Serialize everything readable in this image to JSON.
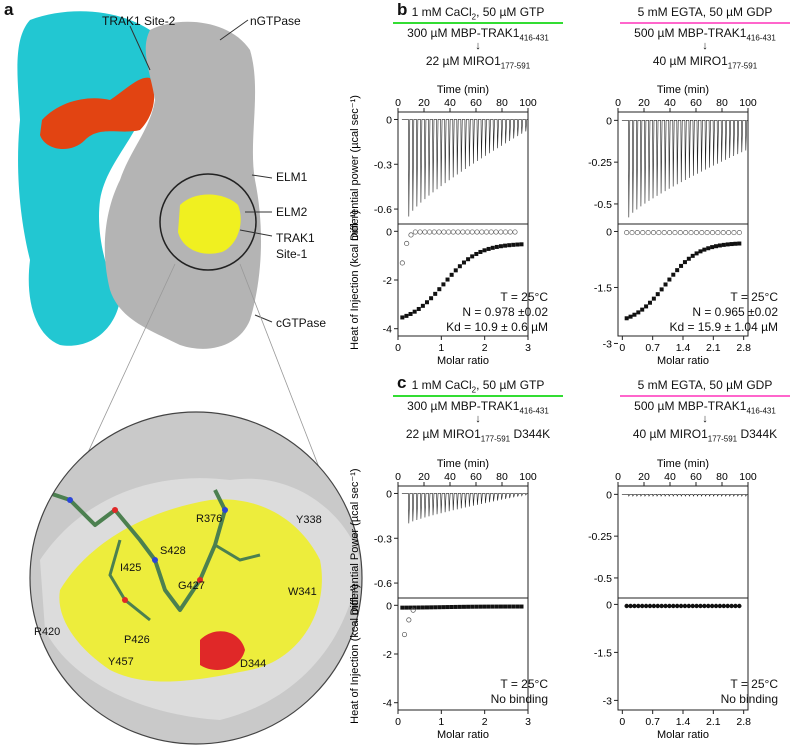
{
  "panel_a": {
    "label": "a",
    "labels": {
      "site2": "TRAK1 Site-2",
      "ngtpase": "nGTPase",
      "elm1": "ELM1",
      "elm2": "ELM2",
      "site1_line1": "TRAK1",
      "site1_line2": "Site-1",
      "cgtpase": "cGTPase"
    },
    "residues": [
      "R376",
      "Y338",
      "S428",
      "I425",
      "G427",
      "W341",
      "R420",
      "P426",
      "Y457",
      "D344"
    ],
    "colors": {
      "cyan": "#22c7d2",
      "orange": "#e24412",
      "grey": "#b4b4b4",
      "yellow": "#f0f020",
      "red": "#e02828"
    }
  },
  "panel_b": {
    "label": "b",
    "left": {
      "header": "1 mM CaCl",
      "header_sub": "2",
      "header_rest": ", 50 µM GTP",
      "rule_color": "#33dd33",
      "syringe": "300 µM MBP-TRAK1",
      "syringe_sub": "416-431",
      "arrow": "↓",
      "cell": "22 µM MIRO1",
      "cell_sub": "177-591",
      "cell_suffix": "",
      "annotation": [
        "T = 25°C",
        "N = 0.978 ±0.02",
        "Kd = 10.9 ± 0.6 µM"
      ]
    },
    "right": {
      "header": "5 mM EGTA, 50 µM GDP",
      "header_sub": "",
      "header_rest": "",
      "rule_color": "#ff66cc",
      "syringe": "500 µM MBP-TRAK1",
      "syringe_sub": "416-431",
      "arrow": "↓",
      "cell": "40 µM MIRO1",
      "cell_sub": "177-591",
      "cell_suffix": "",
      "annotation": [
        "T = 25°C",
        "N = 0.965 ±0.02",
        "Kd = 15.9 ± 1.04 µM"
      ]
    }
  },
  "panel_c": {
    "label": "c",
    "left": {
      "header": "1 mM CaCl",
      "header_sub": "2",
      "header_rest": ", 50 µM GTP",
      "rule_color": "#33dd33",
      "syringe": "300 µM MBP-TRAK1",
      "syringe_sub": "416-431",
      "arrow": "↓",
      "cell": "22 µM MIRO1",
      "cell_sub": "177-591",
      "cell_suffix": " D344K",
      "annotation": [
        "T = 25°C",
        "No binding"
      ]
    },
    "right": {
      "header": "5 mM EGTA, 50 µM GDP",
      "header_sub": "",
      "header_rest": "",
      "rule_color": "#ff66cc",
      "syringe": "500 µM MBP-TRAK1",
      "syringe_sub": "416-431",
      "arrow": "↓",
      "cell": "40 µM MIRO1",
      "cell_sub": "177-591",
      "cell_suffix": " D344K",
      "annotation": [
        "T = 25°C",
        "No binding"
      ]
    }
  },
  "chart_data": [
    {
      "id": "b-left",
      "type": "scatter",
      "top": {
        "xlabel": "Time (min)",
        "xlim": [
          0,
          100
        ],
        "xticks": [
          0,
          20,
          40,
          60,
          80,
          100
        ],
        "ylabel": "Differential power (µcal sec⁻¹)",
        "ylim": [
          -0.7,
          0.05
        ],
        "yticks": [
          0,
          -0.3,
          -0.6
        ],
        "injections": 30,
        "start_min": 8,
        "end_min": 98,
        "peak_first": -0.65,
        "peak_last": -0.08
      },
      "bottom": {
        "xlabel": "Molar ratio",
        "xlim": [
          0,
          3
        ],
        "xticks": [
          0,
          1,
          2,
          3
        ],
        "ylabel": "Heat of Injection (kcal mol⁻¹)",
        "ylim": [
          -4.3,
          0.3
        ],
        "yticks": [
          0,
          -2,
          -4
        ],
        "series": [
          {
            "marker": "square-filled",
            "x_range": [
              0.1,
              2.85
            ],
            "y_start": -3.8,
            "y_end": -0.5,
            "n": 30
          },
          {
            "marker": "circle-open",
            "x": [
              0.1,
              0.2,
              0.3
            ],
            "y": [
              -1.3,
              -0.5,
              -0.15
            ]
          }
        ]
      }
    },
    {
      "id": "b-right",
      "type": "scatter",
      "top": {
        "xlabel": "Time (min)",
        "xlim": [
          0,
          100
        ],
        "xticks": [
          0,
          20,
          40,
          60,
          80,
          100
        ],
        "ylim": [
          -0.62,
          0.05
        ],
        "yticks": [
          0,
          -0.25,
          -0.5
        ],
        "injections": 30,
        "start_min": 8,
        "end_min": 98,
        "peak_first": -0.58,
        "peak_last": -0.18
      },
      "bottom": {
        "xlabel": "Molar ratio",
        "xlim": [
          -0.1,
          2.9
        ],
        "xticks": [
          0,
          0.7,
          1.4,
          2.1,
          2.8
        ],
        "ylim": [
          -2.8,
          0.2
        ],
        "yticks": [
          0,
          -1.5,
          -3
        ],
        "series": [
          {
            "marker": "square-filled",
            "x_range": [
              0.1,
              2.7
            ],
            "y_start": -2.5,
            "y_end": -0.3,
            "n": 30
          }
        ]
      }
    },
    {
      "id": "c-left",
      "type": "scatter",
      "top": {
        "xlabel": "Time (min)",
        "xlim": [
          0,
          100
        ],
        "xticks": [
          0,
          20,
          40,
          60,
          80,
          100
        ],
        "ylabel": "Differential Power (µcal sec⁻¹)",
        "ylim": [
          -0.7,
          0.05
        ],
        "yticks": [
          0,
          -0.3,
          -0.6
        ],
        "injections": 30,
        "start_min": 8,
        "end_min": 98,
        "peak_first": -0.2,
        "peak_last": -0.01
      },
      "bottom": {
        "xlabel": "Molar ratio",
        "xlim": [
          0,
          3
        ],
        "xticks": [
          0,
          1,
          2,
          3
        ],
        "ylabel": "Heat of Injection (kcal mol⁻¹)",
        "ylim": [
          -4.3,
          0.3
        ],
        "yticks": [
          0,
          -2,
          -4
        ],
        "series": [
          {
            "marker": "square-filled",
            "x_range": [
              0.1,
              2.85
            ],
            "y_start": -0.1,
            "y_end": -0.05,
            "n": 30
          },
          {
            "marker": "circle-open",
            "x": [
              0.15,
              0.25,
              0.35
            ],
            "y": [
              -1.2,
              -0.6,
              -0.2
            ]
          }
        ]
      }
    },
    {
      "id": "c-right",
      "type": "scatter",
      "top": {
        "xlabel": "Time (min)",
        "xlim": [
          0,
          100
        ],
        "xticks": [
          0,
          20,
          40,
          60,
          80,
          100
        ],
        "ylim": [
          -0.62,
          0.05
        ],
        "yticks": [
          0,
          -0.25,
          -0.5
        ],
        "injections": 30,
        "start_min": 8,
        "end_min": 98,
        "peak_first": -0.01,
        "peak_last": -0.01
      },
      "bottom": {
        "xlabel": "Molar ratio",
        "xlim": [
          -0.1,
          2.9
        ],
        "xticks": [
          0,
          0.7,
          1.4,
          2.1,
          2.8
        ],
        "ylim": [
          -3.3,
          0.2
        ],
        "yticks": [
          0,
          -1.5,
          -3
        ],
        "series": [
          {
            "marker": "circle-filled",
            "x_range": [
              0.1,
              2.7
            ],
            "y_start": -0.05,
            "y_end": -0.05,
            "n": 30
          }
        ]
      }
    }
  ]
}
